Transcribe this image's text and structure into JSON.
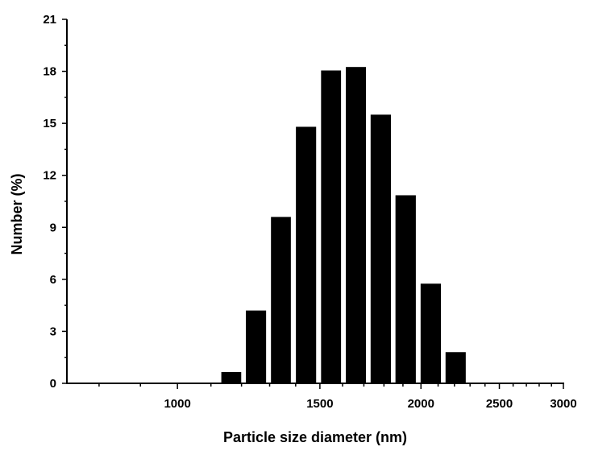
{
  "chart_data": {
    "type": "bar",
    "xlabel": "Particle size diameter (nm)",
    "ylabel": "Number (%)",
    "x_scale": "log",
    "xlim": [
      730,
      3000
    ],
    "ylim": [
      0,
      21
    ],
    "x_ticks": [
      1000,
      1500,
      2000,
      2500,
      3000
    ],
    "x_tick_labels": [
      "1000",
      "1500",
      "2000",
      "2500",
      "3000"
    ],
    "y_ticks": [
      0,
      3,
      6,
      9,
      12,
      15,
      18,
      21
    ],
    "y_tick_labels": [
      "0",
      "3",
      "6",
      "9",
      "12",
      "15",
      "18",
      "21"
    ],
    "bars": [
      {
        "x_start": 1133,
        "x_end": 1199,
        "value": 0.65
      },
      {
        "x_start": 1215,
        "x_end": 1287,
        "value": 4.2
      },
      {
        "x_start": 1305,
        "x_end": 1381,
        "value": 9.6
      },
      {
        "x_start": 1401,
        "x_end": 1484,
        "value": 14.8
      },
      {
        "x_start": 1505,
        "x_end": 1593,
        "value": 18.05
      },
      {
        "x_start": 1615,
        "x_end": 1710,
        "value": 18.25
      },
      {
        "x_start": 1733,
        "x_end": 1836,
        "value": 15.5
      },
      {
        "x_start": 1860,
        "x_end": 1971,
        "value": 10.85
      },
      {
        "x_start": 1998,
        "x_end": 2117,
        "value": 5.75
      },
      {
        "x_start": 2145,
        "x_end": 2272,
        "value": 1.8
      }
    ],
    "bar_color": "#000000",
    "grid": false,
    "legend": "none"
  }
}
